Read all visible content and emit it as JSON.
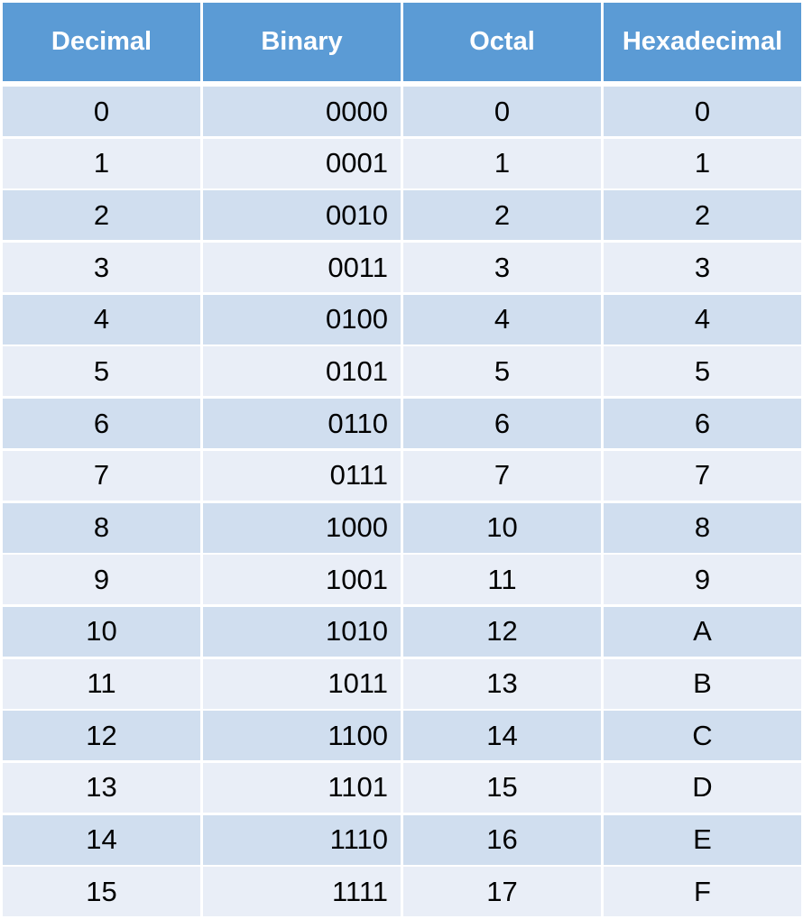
{
  "table": {
    "headers": [
      "Decimal",
      "Binary",
      "Octal",
      "Hexadecimal"
    ],
    "rows": [
      [
        "0",
        "0000",
        "0",
        "0"
      ],
      [
        "1",
        "0001",
        "1",
        "1"
      ],
      [
        "2",
        "0010",
        "2",
        "2"
      ],
      [
        "3",
        "0011",
        "3",
        "3"
      ],
      [
        "4",
        "0100",
        "4",
        "4"
      ],
      [
        "5",
        "0101",
        "5",
        "5"
      ],
      [
        "6",
        "0110",
        "6",
        "6"
      ],
      [
        "7",
        "0111",
        "7",
        "7"
      ],
      [
        "8",
        "1000",
        "10",
        "8"
      ],
      [
        "9",
        "1001",
        "11",
        "9"
      ],
      [
        "10",
        "1010",
        "12",
        "A"
      ],
      [
        "11",
        "1011",
        "13",
        "B"
      ],
      [
        "12",
        "1100",
        "14",
        "C"
      ],
      [
        "13",
        "1101",
        "15",
        "D"
      ],
      [
        "14",
        "1110",
        "16",
        "E"
      ],
      [
        "15",
        "1111",
        "17",
        "F"
      ]
    ]
  },
  "colors": {
    "header_bg": "#5b9bd5",
    "header_text": "#ffffff",
    "row_band_1": "#d0deef",
    "row_band_2": "#e9eef7"
  }
}
